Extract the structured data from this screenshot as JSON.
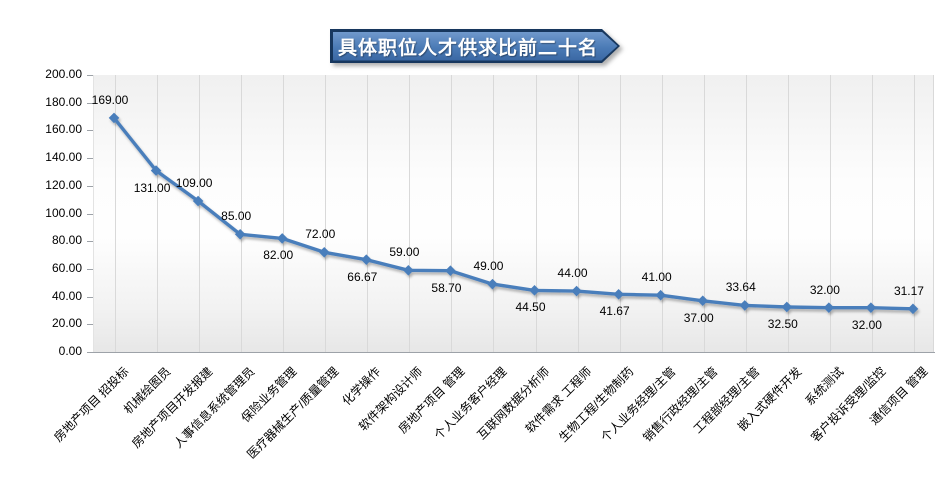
{
  "title": {
    "text": "具体职位人才供求比前二十名"
  },
  "colors": {
    "banner_border": "#17375E",
    "banner_fill_top": "#7099CC",
    "banner_fill_mid": "#4A7AB5",
    "banner_fill_bottom": "#3A67A3",
    "line": "#4A7EBB",
    "marker": "#4A7EBB",
    "gridline": "#D9D9D9",
    "axis_line": "#9DA2A8",
    "plot_bg_top": "#F0F0F0",
    "plot_bg_mid": "#FDFDFD",
    "plot_bg_bottom": "#E7E7E7",
    "text": "#000000"
  },
  "chart_data": {
    "type": "line",
    "title": "具体职位人才供求比前二十名",
    "legend": "none",
    "grid": "vertical-only",
    "marker": "diamond",
    "xlabel": "",
    "ylabel": "",
    "ylim": [
      0,
      200
    ],
    "ytick_step": 20,
    "yticks": [
      "0.00",
      "20.00",
      "40.00",
      "60.00",
      "80.00",
      "100.00",
      "120.00",
      "140.00",
      "160.00",
      "180.00",
      "200.00"
    ],
    "categories": [
      "房地产项目 招投标",
      "机械绘图员",
      "房地产项目开发报建",
      "人事信息系统管理员",
      "保险业务管理",
      "医疗器械生产/质量管理",
      "化学操作",
      "软件架构设计师",
      "房地产项目 管理",
      "个人业务客户经理",
      "互联网数据分析师",
      "软件需求 工程师",
      "生物工程/生物制药",
      "个人业务经理/主管",
      "销售行政经理/主管",
      "工程部经理/主管",
      "嵌入式硬件开发",
      "系统测试",
      "客户投诉受理/监控",
      "通信项目 管理"
    ],
    "values": [
      169.0,
      131.0,
      109.0,
      85.0,
      82.0,
      72.0,
      66.67,
      59.0,
      58.7,
      49.0,
      44.5,
      44.0,
      41.67,
      41.0,
      37.0,
      33.64,
      32.5,
      32.0,
      32.0,
      31.17
    ],
    "value_labels": [
      "169.00",
      "131.00",
      "109.00",
      "85.00",
      "82.00",
      "72.00",
      "66.67",
      "59.00",
      "58.70",
      "49.00",
      "44.50",
      "44.00",
      "41.67",
      "41.00",
      "37.00",
      "33.64",
      "32.50",
      "32.00",
      "32.00",
      "31.17"
    ],
    "label_positions": [
      "above",
      "below",
      "above",
      "above",
      "below",
      "above",
      "below",
      "above",
      "below",
      "above",
      "below",
      "above",
      "below",
      "above",
      "below",
      "above",
      "below",
      "above",
      "below",
      "above"
    ]
  }
}
